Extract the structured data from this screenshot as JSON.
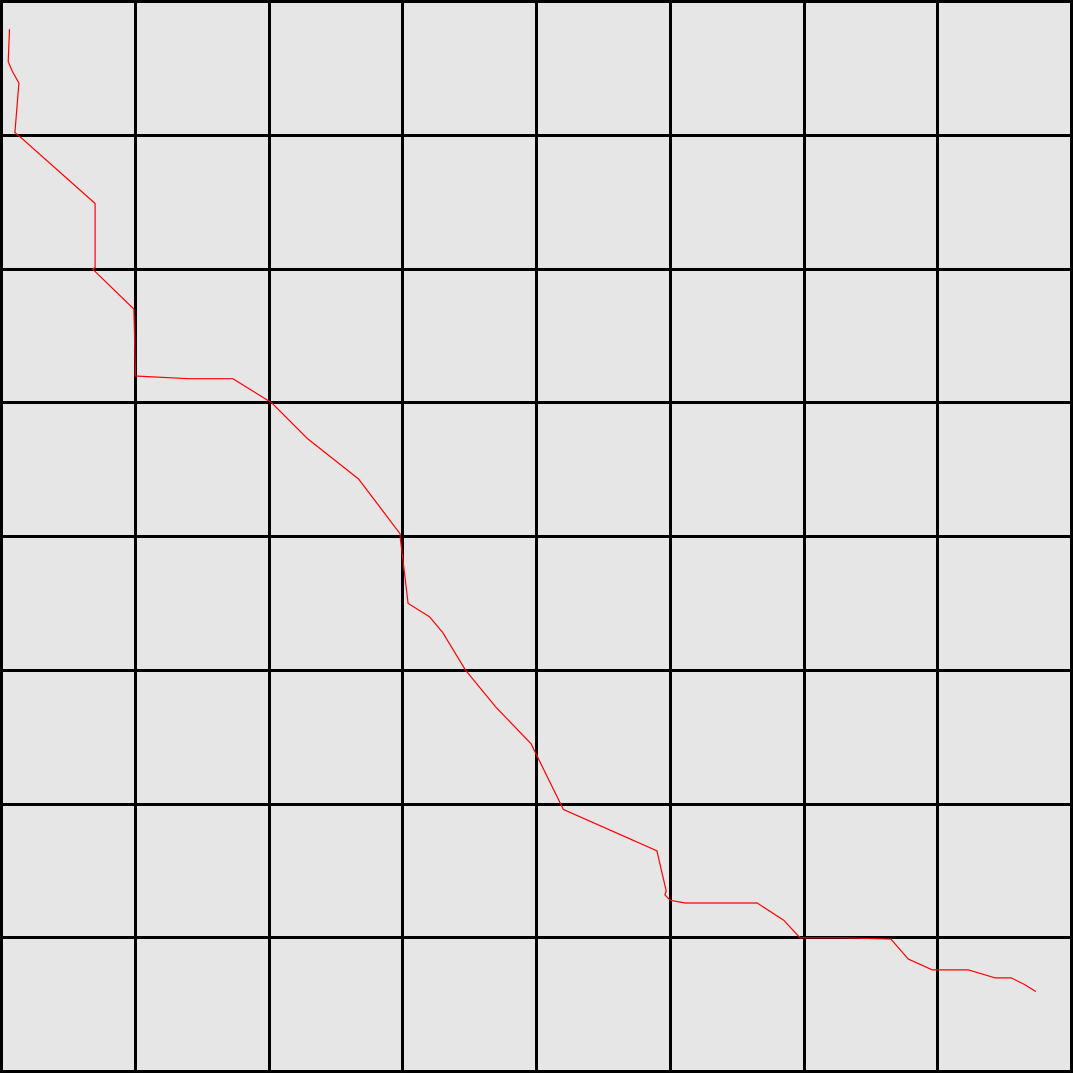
{
  "grid": {
    "rows": 8,
    "cols": 8,
    "cell_color": "#e6e6e6",
    "line_color": "#000000"
  },
  "path": {
    "color": "#ff0000",
    "cols": [
      0.06,
      0.05,
      0.08,
      0.13,
      0.1,
      0.16,
      0.7,
      0.7,
      0.68,
      0.68,
      0.99,
      1.0,
      1.0,
      1.4,
      1.73,
      2.02,
      2.29,
      2.67,
      2.98,
      2.98,
      3.04,
      3.2,
      3.3,
      3.47,
      3.7,
      3.96,
      4.2,
      4.9,
      4.97,
      4.96,
      5.0,
      5.11,
      5.65,
      5.85,
      5.97,
      6.3,
      6.65,
      6.78,
      6.96,
      7.07,
      7.23,
      7.43,
      7.55,
      7.65,
      7.73
    ],
    "rows": [
      0.21,
      0.45,
      0.52,
      0.61,
      0.98,
      1.03,
      1.51,
      1.99,
      2.0,
      2.0,
      2.3,
      2.75,
      2.8,
      2.82,
      2.82,
      3.0,
      3.27,
      3.57,
      3.98,
      4.0,
      4.5,
      4.6,
      4.72,
      5.0,
      5.28,
      5.55,
      6.04,
      6.35,
      6.65,
      6.68,
      6.72,
      6.74,
      6.74,
      6.87,
      7.0,
      7.0,
      7.01,
      7.16,
      7.24,
      7.24,
      7.24,
      7.3,
      7.3,
      7.35,
      7.4
    ]
  }
}
